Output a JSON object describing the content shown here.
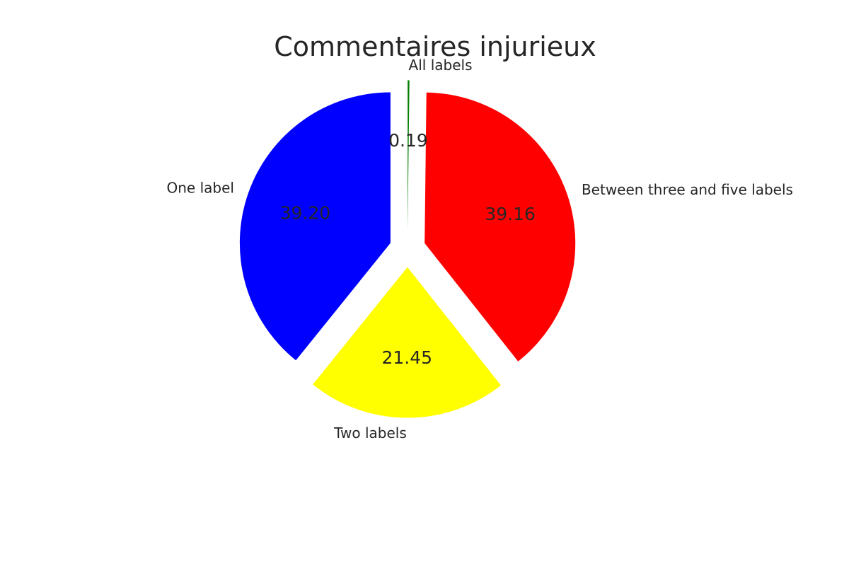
{
  "chart_data": {
    "type": "pie",
    "title": "Commentaires injurieux",
    "start_angle_deg": 90,
    "direction": "clockwise",
    "slices": [
      {
        "label": "All labels",
        "value": 0.19,
        "pct_text": "0.19",
        "color": "#008000",
        "exploded": true
      },
      {
        "label": "Between three and five labels",
        "value": 39.16,
        "pct_text": "39.16",
        "color": "#ff0000",
        "exploded": true
      },
      {
        "label": "Two labels",
        "value": 21.45,
        "pct_text": "21.45",
        "color": "#ffff00",
        "exploded": true
      },
      {
        "label": "One label",
        "value": 39.2,
        "pct_text": "39.20",
        "color": "#0000ff",
        "exploded": true
      }
    ]
  }
}
